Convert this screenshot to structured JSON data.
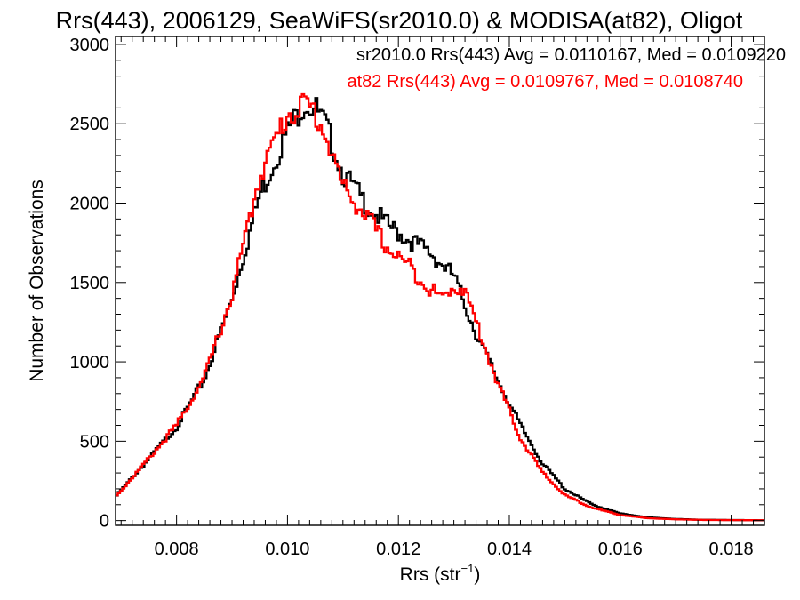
{
  "chart_data": {
    "type": "line",
    "step": true,
    "title": "Rrs(443), 2006129, SeaWiFS(sr2010.0) & MODISA(at82), Oligot",
    "xlabel_main": "Rrs (str",
    "xlabel_sup": "−1",
    "xlabel_close": ")",
    "ylabel": "Number of Observations",
    "xlim": [
      0.0069,
      0.0186
    ],
    "ylim": [
      -30,
      3050
    ],
    "xticks": [
      0.008,
      0.01,
      0.012,
      0.014,
      0.016,
      0.018
    ],
    "xtick_labels": [
      "0.008",
      "0.010",
      "0.012",
      "0.014",
      "0.016",
      "0.018"
    ],
    "yticks": [
      0,
      500,
      1000,
      1500,
      2000,
      2500,
      3000
    ],
    "ytick_labels": [
      "0",
      "500",
      "1000",
      "1500",
      "2000",
      "2500",
      "3000"
    ],
    "grid": false,
    "legend_placement": "top-right",
    "colors": {
      "sr2010": "#000000",
      "at82": "#ff0000",
      "axes": "#000000"
    },
    "legend": [
      {
        "text": "sr2010.0 Rrs(443) Avg = 0.0110167, Med = 0.0109220",
        "color": "#000000"
      },
      {
        "text": "at82 Rrs(443) Avg = 0.0109767, Med = 0.0108740",
        "color": "#ff0000"
      }
    ],
    "series": [
      {
        "color": "#000000",
        "x": [
          0.0069,
          0.0075,
          0.008,
          0.0085,
          0.009,
          0.0095,
          0.01,
          0.0103,
          0.0105,
          0.0107,
          0.011,
          0.0114,
          0.0118,
          0.0122,
          0.0126,
          0.013,
          0.0134,
          0.0138,
          0.0142,
          0.0146,
          0.015,
          0.0155,
          0.016,
          0.0165,
          0.017,
          0.0175,
          0.0186
        ],
        "y": [
          150,
          390,
          590,
          890,
          1400,
          2050,
          2450,
          2630,
          2600,
          2480,
          2190,
          2000,
          1860,
          1770,
          1680,
          1540,
          1180,
          880,
          600,
          360,
          200,
          100,
          45,
          20,
          10,
          5,
          2
        ]
      },
      {
        "color": "#ff0000",
        "x": [
          0.0069,
          0.0075,
          0.008,
          0.0085,
          0.009,
          0.0095,
          0.01,
          0.0103,
          0.0105,
          0.0107,
          0.011,
          0.0114,
          0.0118,
          0.0122,
          0.0126,
          0.0128,
          0.013,
          0.0132,
          0.0134,
          0.0138,
          0.0142,
          0.0146,
          0.015,
          0.0155,
          0.016,
          0.0165,
          0.017,
          0.0175,
          0.0186
        ],
        "y": [
          150,
          390,
          600,
          900,
          1420,
          2180,
          2560,
          2620,
          2570,
          2420,
          2100,
          1930,
          1720,
          1600,
          1450,
          1400,
          1480,
          1450,
          1250,
          860,
          520,
          300,
          160,
          80,
          35,
          15,
          8,
          4,
          2
        ]
      }
    ]
  }
}
